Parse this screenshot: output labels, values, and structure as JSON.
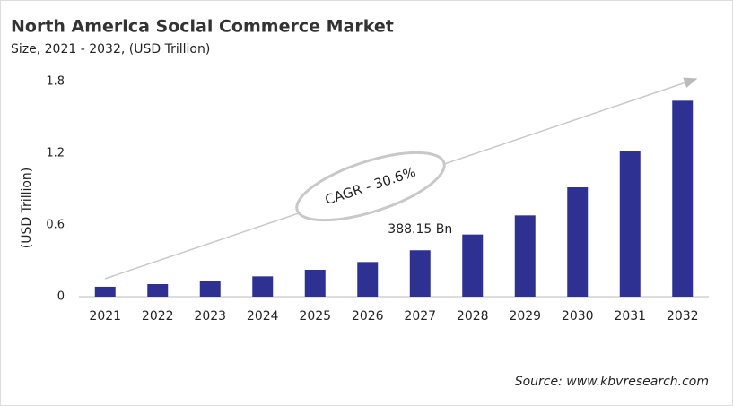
{
  "chart_data": {
    "type": "bar",
    "title": "North America Social Commerce Market",
    "subtitle": "Size, 2021 - 2032, (USD Trillion)",
    "y_label": "(USD Trillion)",
    "annotation": "CAGR - 30.6%",
    "source": "Source: www.kbvresearch.com",
    "categories": [
      "2021",
      "2022",
      "2023",
      "2024",
      "2025",
      "2026",
      "2027",
      "2028",
      "2029",
      "2030",
      "2031",
      "2032"
    ],
    "values": [
      0.083,
      0.105,
      0.135,
      0.17,
      0.225,
      0.29,
      0.38815,
      0.52,
      0.68,
      0.915,
      1.22,
      1.64
    ],
    "value_labels": [
      null,
      null,
      null,
      null,
      null,
      null,
      "388.15 Bn",
      null,
      null,
      null,
      null,
      null
    ],
    "color": "#2e3192",
    "ylim": [
      0,
      1.8
    ],
    "yticks": [
      0,
      0.6,
      1.2,
      1.8
    ],
    "grid": false
  }
}
